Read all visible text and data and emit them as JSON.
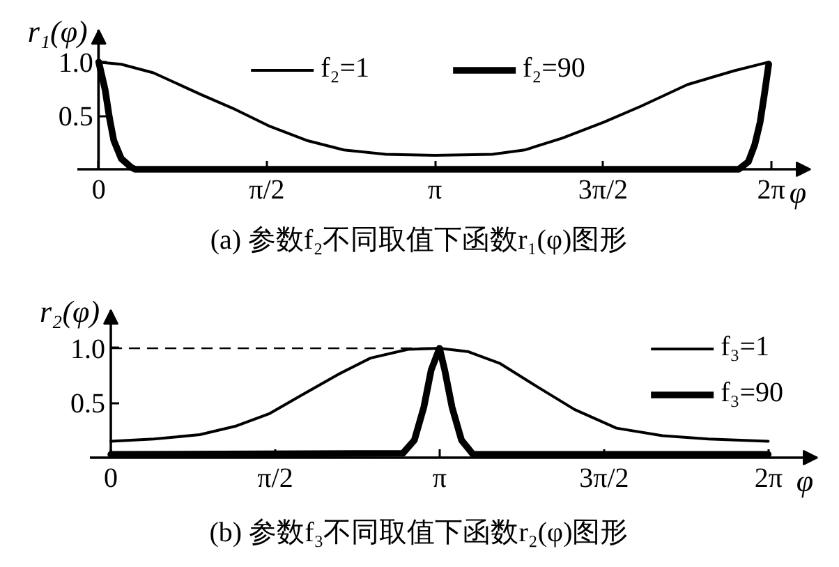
{
  "chart_data": [
    {
      "type": "line",
      "xlabel": "φ",
      "ylabel": "r₁(φ)",
      "xlim": [
        -0.2,
        6.65
      ],
      "ylim": [
        0,
        1.3
      ],
      "xticks": [
        0,
        {
          "value": 1.5708,
          "label": "π/2"
        },
        {
          "value": 3.1416,
          "label": "π"
        },
        {
          "value": 4.7124,
          "label": "3π/2"
        },
        {
          "value": 6.2832,
          "label": "2π"
        }
      ],
      "yticks": [
        0.5,
        {
          "value": 1,
          "label": "1.0"
        }
      ],
      "legend": "top",
      "series": [
        {
          "name": "f₂=1",
          "color": "#000000",
          "x": [
            0,
            0.21,
            0.51,
            0.95,
            1.25,
            1.6,
            1.94,
            2.29,
            2.68,
            3.14,
            3.68,
            3.98,
            4.33,
            4.72,
            5.07,
            5.5,
            5.94,
            6.26
          ],
          "values": [
            1.0,
            0.98,
            0.9,
            0.7,
            0.57,
            0.4,
            0.27,
            0.18,
            0.14,
            0.13,
            0.14,
            0.18,
            0.29,
            0.44,
            0.59,
            0.79,
            0.92,
            1.0
          ]
        },
        {
          "name": "f₂=90",
          "color": "#000000",
          "x": [
            0,
            0.06,
            0.1,
            0.14,
            0.21,
            0.3,
            0.34,
            5.98,
            6.07,
            6.13,
            6.18,
            6.22,
            6.26
          ],
          "values": [
            1.0,
            0.74,
            0.48,
            0.27,
            0.1,
            0.02,
            0,
            0,
            0.07,
            0.23,
            0.44,
            0.7,
            0.98
          ]
        }
      ],
      "annotations": [
        "(a) 参数f₂不同取值下函数r₁(φ)图形"
      ]
    },
    {
      "type": "line",
      "xlabel": "φ",
      "ylabel": "r₂(φ)",
      "xlim": [
        -0.2,
        6.75
      ],
      "ylim": [
        0,
        1.35
      ],
      "xticks": [
        0,
        {
          "value": 1.5708,
          "label": "π/2"
        },
        {
          "value": 3.1416,
          "label": "π"
        },
        {
          "value": 4.7124,
          "label": "3π/2"
        },
        {
          "value": 6.2832,
          "label": "2π"
        }
      ],
      "yticks": [
        0.5,
        {
          "value": 1,
          "label": "1.0"
        }
      ],
      "legend": "top right",
      "ref_lines": [
        {
          "axis": "y",
          "value": 1,
          "line_style": "dashed",
          "color": "#000000"
        }
      ],
      "series": [
        {
          "name": "f₃=1",
          "color": "#000000",
          "x": [
            0,
            0.41,
            0.85,
            1.2,
            1.51,
            1.82,
            2.17,
            2.48,
            2.84,
            3.14,
            3.41,
            3.72,
            4.07,
            4.43,
            4.83,
            5.27,
            5.71,
            6.28
          ],
          "values": [
            0.15,
            0.17,
            0.21,
            0.29,
            0.4,
            0.57,
            0.76,
            0.91,
            0.99,
            1.0,
            0.97,
            0.86,
            0.65,
            0.44,
            0.27,
            0.2,
            0.17,
            0.15
          ]
        },
        {
          "name": "f₃=90",
          "color": "#000000",
          "x": [
            0,
            2.79,
            2.9,
            2.99,
            3.06,
            3.14,
            3.19,
            3.26,
            3.35,
            3.46,
            6.28
          ],
          "values": [
            0.03,
            0.04,
            0.16,
            0.46,
            0.8,
            1.0,
            0.8,
            0.46,
            0.16,
            0.03,
            0.03
          ]
        }
      ],
      "annotations": [
        "(b) 参数f₃不同取值下函数r₂(φ)图形"
      ]
    }
  ]
}
